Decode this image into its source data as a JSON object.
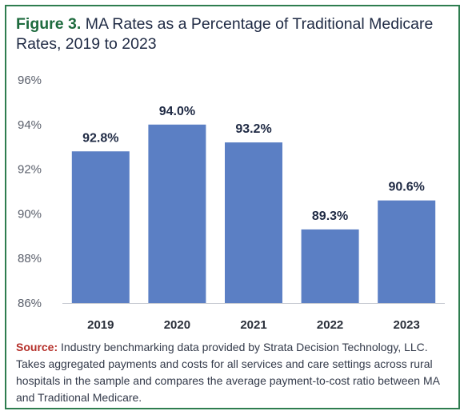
{
  "figure_label": "Figure 3.",
  "title_text": "MA Rates as a Percentage of Traditional Medicare Rates, 2019 to 2023",
  "source_label": "Source:",
  "source_text": "Industry benchmarking data provided by Strata Decision Technology, LLC. Takes aggregated payments and costs for all services and care settings across rural hospitals in the sample and compares the average payment-to-cost ratio between MA and Traditional Medicare.",
  "colors": {
    "bar": "#5b7fc4",
    "figure_label": "#1e6b3e",
    "source_label": "#b5302a",
    "border": "#2e7d4f"
  },
  "chart_data": {
    "type": "bar",
    "title": "MA Rates as a Percentage of Traditional Medicare Rates, 2019 to 2023",
    "categories": [
      "2019",
      "2020",
      "2021",
      "2022",
      "2023"
    ],
    "values": [
      92.8,
      94.0,
      93.2,
      89.3,
      90.6
    ],
    "data_labels": [
      "92.8%",
      "94.0%",
      "93.2%",
      "89.3%",
      "90.6%"
    ],
    "yticks": [
      86,
      88,
      90,
      92,
      94,
      96
    ],
    "ytick_labels": [
      "86%",
      "88%",
      "90%",
      "92%",
      "94%",
      "96%"
    ],
    "ylim": [
      86,
      96
    ],
    "grid": false,
    "legend": "none"
  }
}
